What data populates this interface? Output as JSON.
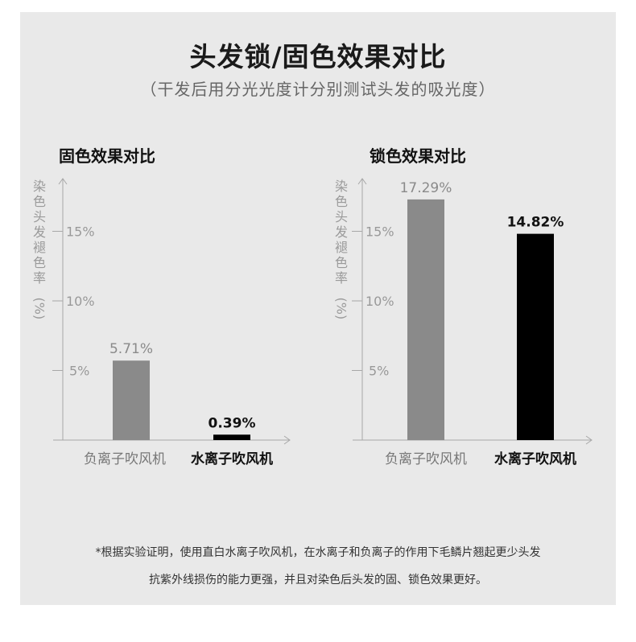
{
  "header": {
    "title": "头发锁/固色效果对比",
    "subtitle": "（干发后用分光光度计分别测试头发的吸光度）"
  },
  "chart_data": [
    {
      "type": "bar",
      "title": "固色效果对比",
      "ylabel": "染色头发褪色率(%)",
      "categories": [
        "负离子吹风机",
        "水离子吹风机"
      ],
      "values": [
        5.71,
        0.39
      ],
      "value_labels": [
        "5.71%",
        "0.39%"
      ],
      "bar_colors": [
        "#8a8a8a",
        "#000000"
      ],
      "yticks": [
        5,
        10,
        15
      ],
      "ytick_labels": [
        "5%",
        "10%",
        "15%"
      ],
      "ylim": [
        0,
        19
      ],
      "grid": false
    },
    {
      "type": "bar",
      "title": "锁色效果对比",
      "ylabel": "染色头发褪色率(%)",
      "categories": [
        "负离子吹风机",
        "水离子吹风机"
      ],
      "values": [
        17.29,
        14.82
      ],
      "value_labels": [
        "17.29%",
        "14.82%"
      ],
      "bar_colors": [
        "#8a8a8a",
        "#000000"
      ],
      "yticks": [
        5,
        10,
        15
      ],
      "ytick_labels": [
        "5%",
        "10%",
        "15%"
      ],
      "ylim": [
        0,
        19
      ],
      "grid": false
    }
  ],
  "footnote": {
    "line1": "*根据实验证明，使用直白水离子吹风机，在水离子和负离子的作用下毛鳞片翘起更少头发",
    "line2": "抗紫外线损伤的能力更强，并且对染色后头发的固、锁色效果更好。"
  }
}
